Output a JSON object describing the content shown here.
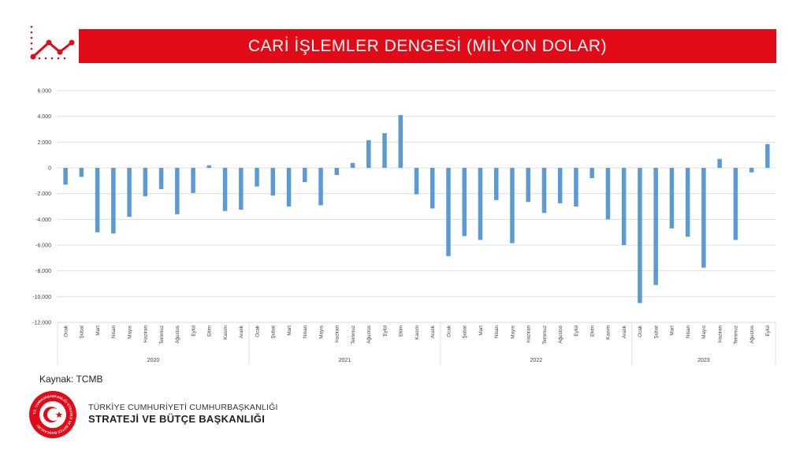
{
  "title": "CARİ İŞLEMLER DENGESİ (MİLYON DOLAR)",
  "source": "Kaynak: TCMB",
  "org": {
    "line1": "TÜRKİYE CUMHURİYETİ CUMHURBAŞKANLIĞI",
    "line2": "STRATEJİ VE BÜTÇE BAŞKANLIĞI",
    "logo_text": "T.C. CUMHURBAŞKANLIĞI STRATEJİ VE BÜTÇE BAŞKANLIĞI"
  },
  "colors": {
    "accent": "#e30a17",
    "bar": "#5b9bd5"
  },
  "icons": {
    "header": "trend-line-icon",
    "logo": "crescent-star-seal-icon"
  },
  "chart_data": {
    "type": "bar",
    "title": "CARİ İŞLEMLER DENGESİ (MİLYON DOLAR)",
    "ylim": [
      -12000,
      6000
    ],
    "yticks": [
      6000,
      4000,
      2000,
      0,
      -2000,
      -4000,
      -6000,
      -8000,
      -10000,
      -12000
    ],
    "ytick_labels": [
      "6.000",
      "4.000",
      "2.000",
      "0",
      "-2.000",
      "-4.000",
      "-6.000",
      "-8.000",
      "-10.000",
      "-12.000"
    ],
    "grid": true,
    "groups": [
      {
        "year": "2020",
        "categories": [
          "Ocak",
          "Şubat",
          "Mart",
          "Nisan",
          "Mayıs",
          "Haziran",
          "Temmuz",
          "Ağustos",
          "Eylül",
          "Ekim",
          "Kasım",
          "Aralık"
        ],
        "values": [
          -1300,
          -700,
          -5000,
          -5100,
          -3800,
          -2200,
          -1650,
          -3600,
          -1950,
          200,
          -3350,
          -3250
        ]
      },
      {
        "year": "2021",
        "categories": [
          "Ocak",
          "Şubat",
          "Mart",
          "Nisan",
          "Mayıs",
          "Haziran",
          "Temmuz",
          "Ağustos",
          "Eylül",
          "Ekim",
          "Kasım",
          "Aralık"
        ],
        "values": [
          -1450,
          -2150,
          -3000,
          -1100,
          -2900,
          -550,
          380,
          2150,
          2700,
          4100,
          -2050,
          -3150
        ]
      },
      {
        "year": "2022",
        "categories": [
          "Ocak",
          "Şubat",
          "Mart",
          "Nisan",
          "Mayıs",
          "Haziran",
          "Temmuz",
          "Ağustos",
          "Eylül",
          "Ekim",
          "Kasım",
          "Aralık"
        ],
        "values": [
          -6850,
          -5300,
          -5600,
          -2500,
          -5850,
          -2650,
          -3500,
          -2750,
          -3000,
          -800,
          -4000,
          -6000
        ]
      },
      {
        "year": "2023",
        "categories": [
          "Ocak",
          "Şubat",
          "Mart",
          "Nisan",
          "Mayıs",
          "Haziran",
          "Temmuz",
          "Ağustos",
          "Eylül"
        ],
        "values": [
          -10500,
          -9100,
          -4700,
          -5350,
          -7750,
          700,
          -5600,
          -350,
          1850
        ]
      }
    ]
  }
}
